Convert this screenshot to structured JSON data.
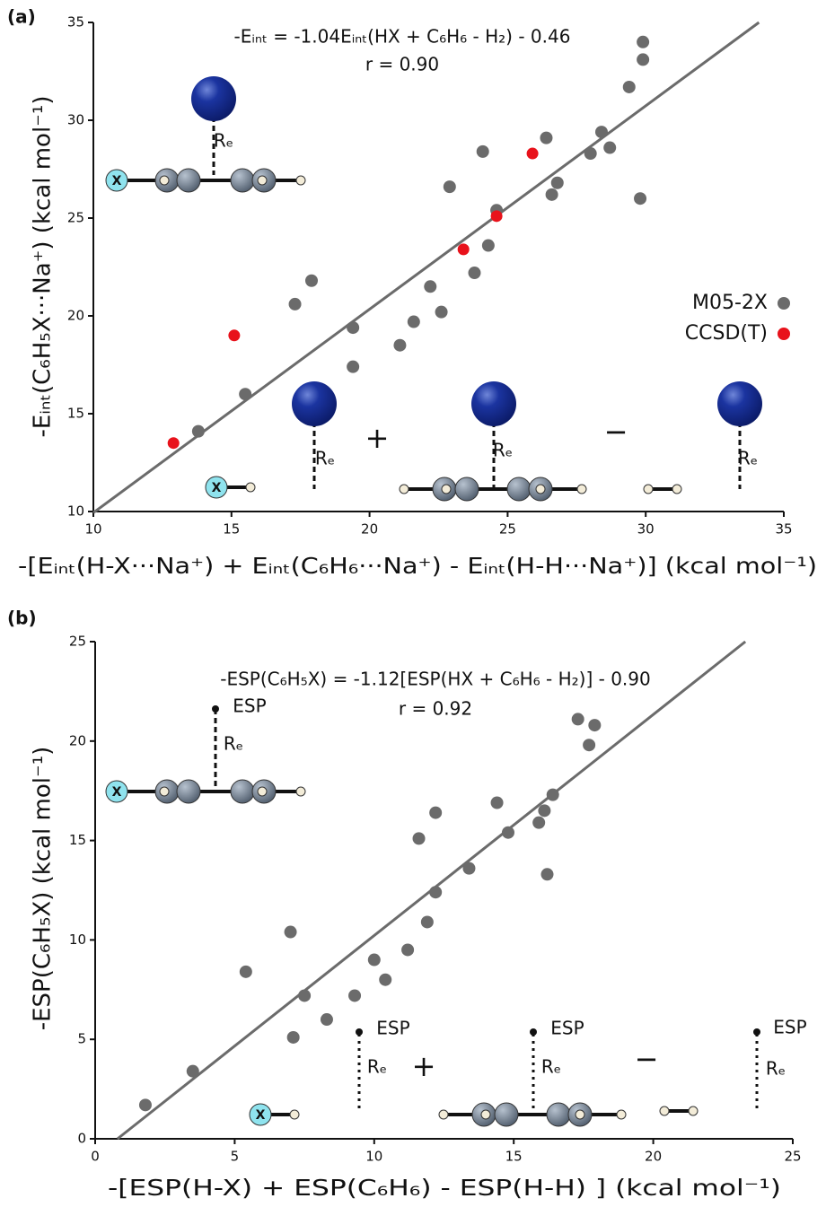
{
  "chart_data": [
    {
      "type": "scatter",
      "panel_label": "(a)",
      "title": "-Eᵢₙₜ = -1.04Eᵢₙₜ(HX + C₆H₆ - H₂) - 0.46",
      "subtitle": "r = 0.90",
      "x_label": "-[Eᵢₙₜ(H-X···Na⁺) + Eᵢₙₜ(C₆H₆···Na⁺) - Eᵢₙₜ(H-H···Na⁺)] (kcal mol⁻¹)",
      "y_label": "-Eᵢₙₜ(C₆H₅X···Na⁺) (kcal mol⁻¹)",
      "xlim": [
        10,
        35
      ],
      "ylim": [
        10,
        35
      ],
      "xticks": [
        10,
        15,
        20,
        25,
        30,
        35
      ],
      "yticks": [
        10,
        15,
        20,
        25,
        30,
        35
      ],
      "legend": "right",
      "series": [
        {
          "name": "M05-2X",
          "color": "#6b6b6b",
          "x": [
            13.8,
            15.5,
            17.3,
            17.9,
            19.4,
            19.4,
            21.1,
            21.6,
            22.2,
            22.6,
            22.9,
            23.8,
            24.1,
            24.3,
            24.6,
            26.4,
            26.6,
            26.8,
            28.0,
            28.4,
            28.7,
            29.4,
            29.8,
            29.9,
            29.9
          ],
          "values": [
            14.1,
            16.0,
            20.6,
            21.8,
            19.4,
            17.4,
            18.5,
            19.7,
            21.5,
            20.2,
            26.6,
            22.2,
            28.4,
            23.6,
            25.4,
            29.1,
            26.2,
            26.8,
            28.3,
            29.4,
            28.6,
            31.7,
            26.0,
            33.1,
            34.0
          ]
        },
        {
          "name": "CCSD(T)",
          "color": "#e8121b",
          "x": [
            12.9,
            15.1,
            23.4,
            24.6,
            25.9
          ],
          "values": [
            13.5,
            19.0,
            23.4,
            25.1,
            28.3
          ]
        }
      ],
      "fit_line": {
        "color": "#6b6b6b",
        "x": [
          10,
          34.1
        ],
        "y": [
          9.94,
          35
        ]
      },
      "annotations": [
        "Rₑ",
        "X",
        "Rₑ",
        "+",
        "Rₑ",
        "−",
        "Rₑ",
        "X"
      ]
    },
    {
      "type": "scatter",
      "panel_label": "(b)",
      "title": "-ESP(C₆H₅X) = -1.12[ESP(HX + C₆H₆ - H₂)] - 0.90",
      "subtitle": "r = 0.92",
      "x_label": "-[ESP(H-X) + ESP(C₆H₆) - ESP(H-H) ] (kcal mol⁻¹)",
      "y_label": "-ESP(C₆H₅X) (kcal mol⁻¹)",
      "xlim": [
        0,
        25
      ],
      "ylim": [
        0,
        25
      ],
      "xticks": [
        0,
        5,
        10,
        15,
        20,
        25
      ],
      "yticks": [
        0,
        5,
        10,
        15,
        20,
        25
      ],
      "series": [
        {
          "color": "#6b6b6b",
          "x": [
            1.8,
            3.5,
            5.4,
            7.0,
            7.1,
            7.5,
            8.3,
            9.3,
            10.0,
            10.4,
            11.2,
            11.6,
            11.9,
            12.2,
            12.2,
            13.4,
            14.4,
            14.8,
            15.9,
            16.1,
            16.2,
            16.4,
            17.3,
            17.7,
            17.9
          ],
          "values": [
            1.7,
            3.4,
            8.4,
            10.4,
            5.1,
            7.2,
            6.0,
            7.2,
            9.0,
            8.0,
            9.5,
            15.1,
            10.9,
            16.4,
            12.4,
            13.6,
            16.9,
            15.4,
            15.9,
            16.5,
            13.3,
            17.3,
            21.1,
            19.8,
            20.8
          ]
        }
      ],
      "fit_line": {
        "color": "#6b6b6b",
        "x": [
          0.8,
          23.3
        ],
        "y": [
          0,
          25
        ]
      },
      "annotations": [
        "ESP",
        "Rₑ",
        "X",
        "ESP",
        "Rₑ",
        "+",
        "ESP",
        "Rₑ",
        "−",
        "ESP",
        "Rₑ",
        "X"
      ]
    }
  ]
}
